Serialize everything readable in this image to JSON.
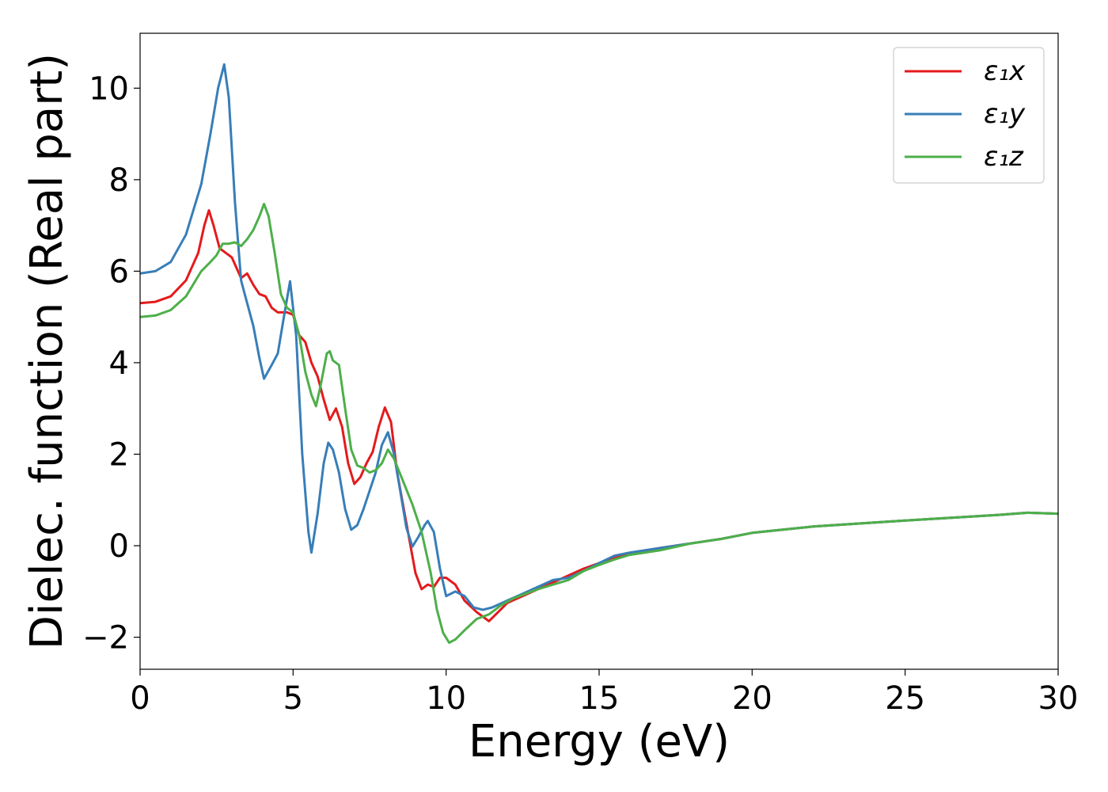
{
  "chart_data": {
    "type": "line",
    "xlabel": "Energy (eV)",
    "ylabel": "Dielec. function (Real part)",
    "xlim": [
      0,
      30
    ],
    "ylim": [
      -2.7,
      11.2
    ],
    "xticks": [
      0,
      5,
      10,
      15,
      20,
      25,
      30
    ],
    "xtick_labels": [
      "0",
      "5",
      "10",
      "15",
      "20",
      "25",
      "30"
    ],
    "yticks": [
      -2,
      0,
      2,
      4,
      6,
      8,
      10
    ],
    "ytick_labels": [
      "−2",
      "0",
      "2",
      "4",
      "6",
      "8",
      "10"
    ],
    "grid": false,
    "legend_position": "top-right",
    "series": [
      {
        "name": "ε₁x",
        "color": "#e41a1c",
        "points": [
          [
            0,
            5.3
          ],
          [
            0.5,
            5.33
          ],
          [
            1.0,
            5.45
          ],
          [
            1.5,
            5.8
          ],
          [
            1.9,
            6.4
          ],
          [
            2.1,
            7.0
          ],
          [
            2.25,
            7.33
          ],
          [
            2.4,
            7.0
          ],
          [
            2.6,
            6.5
          ],
          [
            2.8,
            6.4
          ],
          [
            3.0,
            6.3
          ],
          [
            3.2,
            6.0
          ],
          [
            3.3,
            5.85
          ],
          [
            3.5,
            5.95
          ],
          [
            3.7,
            5.7
          ],
          [
            3.9,
            5.5
          ],
          [
            4.1,
            5.45
          ],
          [
            4.3,
            5.2
          ],
          [
            4.5,
            5.1
          ],
          [
            4.8,
            5.1
          ],
          [
            5.0,
            5.05
          ],
          [
            5.2,
            4.6
          ],
          [
            5.4,
            4.45
          ],
          [
            5.6,
            4.0
          ],
          [
            5.8,
            3.7
          ],
          [
            6.0,
            3.2
          ],
          [
            6.2,
            2.75
          ],
          [
            6.4,
            3.0
          ],
          [
            6.6,
            2.6
          ],
          [
            6.8,
            1.8
          ],
          [
            7.0,
            1.35
          ],
          [
            7.2,
            1.5
          ],
          [
            7.4,
            1.8
          ],
          [
            7.6,
            2.05
          ],
          [
            7.8,
            2.6
          ],
          [
            8.0,
            3.02
          ],
          [
            8.2,
            2.7
          ],
          [
            8.4,
            1.6
          ],
          [
            8.7,
            0.5
          ],
          [
            9.0,
            -0.6
          ],
          [
            9.2,
            -0.95
          ],
          [
            9.4,
            -0.85
          ],
          [
            9.6,
            -0.9
          ],
          [
            9.8,
            -0.7
          ],
          [
            10.0,
            -0.7
          ],
          [
            10.3,
            -0.85
          ],
          [
            10.6,
            -1.2
          ],
          [
            11.0,
            -1.45
          ],
          [
            11.4,
            -1.65
          ],
          [
            11.7,
            -1.45
          ],
          [
            12.0,
            -1.25
          ],
          [
            12.5,
            -1.1
          ],
          [
            13.0,
            -0.95
          ],
          [
            13.5,
            -0.8
          ],
          [
            14.0,
            -0.65
          ],
          [
            14.5,
            -0.5
          ],
          [
            15.0,
            -0.38
          ],
          [
            15.5,
            -0.25
          ],
          [
            16.0,
            -0.17
          ],
          [
            17.0,
            -0.05
          ],
          [
            18.0,
            0.05
          ],
          [
            19.0,
            0.15
          ],
          [
            20.0,
            0.28
          ],
          [
            22.0,
            0.42
          ],
          [
            25.0,
            0.55
          ],
          [
            28.0,
            0.67
          ],
          [
            29.0,
            0.72
          ],
          [
            30.0,
            0.7
          ]
        ]
      },
      {
        "name": "ε₁y",
        "color": "#377eb8",
        "points": [
          [
            0,
            5.95
          ],
          [
            0.5,
            6.0
          ],
          [
            1.0,
            6.2
          ],
          [
            1.5,
            6.8
          ],
          [
            2.0,
            7.9
          ],
          [
            2.3,
            9.0
          ],
          [
            2.55,
            10.0
          ],
          [
            2.75,
            10.52
          ],
          [
            2.9,
            9.8
          ],
          [
            3.1,
            7.5
          ],
          [
            3.3,
            5.8
          ],
          [
            3.5,
            5.3
          ],
          [
            3.7,
            4.8
          ],
          [
            3.9,
            4.1
          ],
          [
            4.05,
            3.65
          ],
          [
            4.3,
            3.95
          ],
          [
            4.5,
            4.2
          ],
          [
            4.7,
            5.0
          ],
          [
            4.9,
            5.78
          ],
          [
            5.1,
            4.6
          ],
          [
            5.3,
            2.0
          ],
          [
            5.5,
            0.3
          ],
          [
            5.6,
            -0.15
          ],
          [
            5.8,
            0.7
          ],
          [
            6.0,
            1.8
          ],
          [
            6.15,
            2.25
          ],
          [
            6.3,
            2.1
          ],
          [
            6.5,
            1.6
          ],
          [
            6.7,
            0.8
          ],
          [
            6.9,
            0.35
          ],
          [
            7.1,
            0.45
          ],
          [
            7.3,
            0.8
          ],
          [
            7.5,
            1.2
          ],
          [
            7.7,
            1.6
          ],
          [
            7.9,
            2.2
          ],
          [
            8.1,
            2.48
          ],
          [
            8.3,
            2.0
          ],
          [
            8.5,
            1.2
          ],
          [
            8.7,
            0.4
          ],
          [
            8.9,
            -0.02
          ],
          [
            9.1,
            0.2
          ],
          [
            9.3,
            0.45
          ],
          [
            9.4,
            0.54
          ],
          [
            9.6,
            0.3
          ],
          [
            9.8,
            -0.5
          ],
          [
            10.0,
            -1.1
          ],
          [
            10.3,
            -1.0
          ],
          [
            10.6,
            -1.1
          ],
          [
            10.9,
            -1.35
          ],
          [
            11.2,
            -1.4
          ],
          [
            11.5,
            -1.35
          ],
          [
            12.0,
            -1.2
          ],
          [
            12.5,
            -1.05
          ],
          [
            13.0,
            -0.9
          ],
          [
            13.5,
            -0.75
          ],
          [
            14.0,
            -0.7
          ],
          [
            14.5,
            -0.55
          ],
          [
            15.0,
            -0.38
          ],
          [
            15.5,
            -0.22
          ],
          [
            16.0,
            -0.15
          ],
          [
            17.0,
            -0.05
          ],
          [
            18.0,
            0.05
          ],
          [
            19.0,
            0.15
          ],
          [
            20.0,
            0.28
          ],
          [
            22.0,
            0.42
          ],
          [
            25.0,
            0.55
          ],
          [
            28.0,
            0.67
          ],
          [
            29.0,
            0.72
          ],
          [
            30.0,
            0.7
          ]
        ]
      },
      {
        "name": "ε₁z",
        "color": "#4daf4a",
        "points": [
          [
            0,
            5.0
          ],
          [
            0.5,
            5.03
          ],
          [
            1.0,
            5.15
          ],
          [
            1.5,
            5.45
          ],
          [
            2.0,
            6.0
          ],
          [
            2.3,
            6.2
          ],
          [
            2.5,
            6.35
          ],
          [
            2.7,
            6.6
          ],
          [
            2.9,
            6.6
          ],
          [
            3.1,
            6.63
          ],
          [
            3.3,
            6.55
          ],
          [
            3.5,
            6.7
          ],
          [
            3.7,
            6.9
          ],
          [
            3.9,
            7.2
          ],
          [
            4.05,
            7.47
          ],
          [
            4.2,
            7.2
          ],
          [
            4.4,
            6.4
          ],
          [
            4.6,
            5.5
          ],
          [
            4.8,
            5.2
          ],
          [
            5.0,
            5.1
          ],
          [
            5.2,
            4.6
          ],
          [
            5.4,
            3.8
          ],
          [
            5.6,
            3.3
          ],
          [
            5.75,
            3.05
          ],
          [
            5.9,
            3.5
          ],
          [
            6.1,
            4.2
          ],
          [
            6.2,
            4.25
          ],
          [
            6.3,
            4.05
          ],
          [
            6.5,
            3.95
          ],
          [
            6.7,
            3.0
          ],
          [
            6.9,
            2.1
          ],
          [
            7.1,
            1.75
          ],
          [
            7.3,
            1.7
          ],
          [
            7.5,
            1.6
          ],
          [
            7.7,
            1.65
          ],
          [
            7.9,
            1.8
          ],
          [
            8.1,
            2.1
          ],
          [
            8.3,
            1.9
          ],
          [
            8.6,
            1.4
          ],
          [
            8.9,
            0.9
          ],
          [
            9.2,
            0.3
          ],
          [
            9.5,
            -0.6
          ],
          [
            9.7,
            -1.4
          ],
          [
            9.9,
            -1.9
          ],
          [
            10.1,
            -2.12
          ],
          [
            10.3,
            -2.05
          ],
          [
            10.6,
            -1.85
          ],
          [
            11.0,
            -1.6
          ],
          [
            11.4,
            -1.5
          ],
          [
            11.8,
            -1.3
          ],
          [
            12.2,
            -1.15
          ],
          [
            12.6,
            -1.05
          ],
          [
            13.0,
            -0.95
          ],
          [
            13.5,
            -0.85
          ],
          [
            14.0,
            -0.75
          ],
          [
            14.5,
            -0.55
          ],
          [
            15.0,
            -0.42
          ],
          [
            15.5,
            -0.3
          ],
          [
            16.0,
            -0.2
          ],
          [
            17.0,
            -0.1
          ],
          [
            18.0,
            0.05
          ],
          [
            19.0,
            0.15
          ],
          [
            20.0,
            0.28
          ],
          [
            22.0,
            0.42
          ],
          [
            25.0,
            0.55
          ],
          [
            28.0,
            0.67
          ],
          [
            29.0,
            0.72
          ],
          [
            30.0,
            0.7
          ]
        ]
      }
    ]
  }
}
